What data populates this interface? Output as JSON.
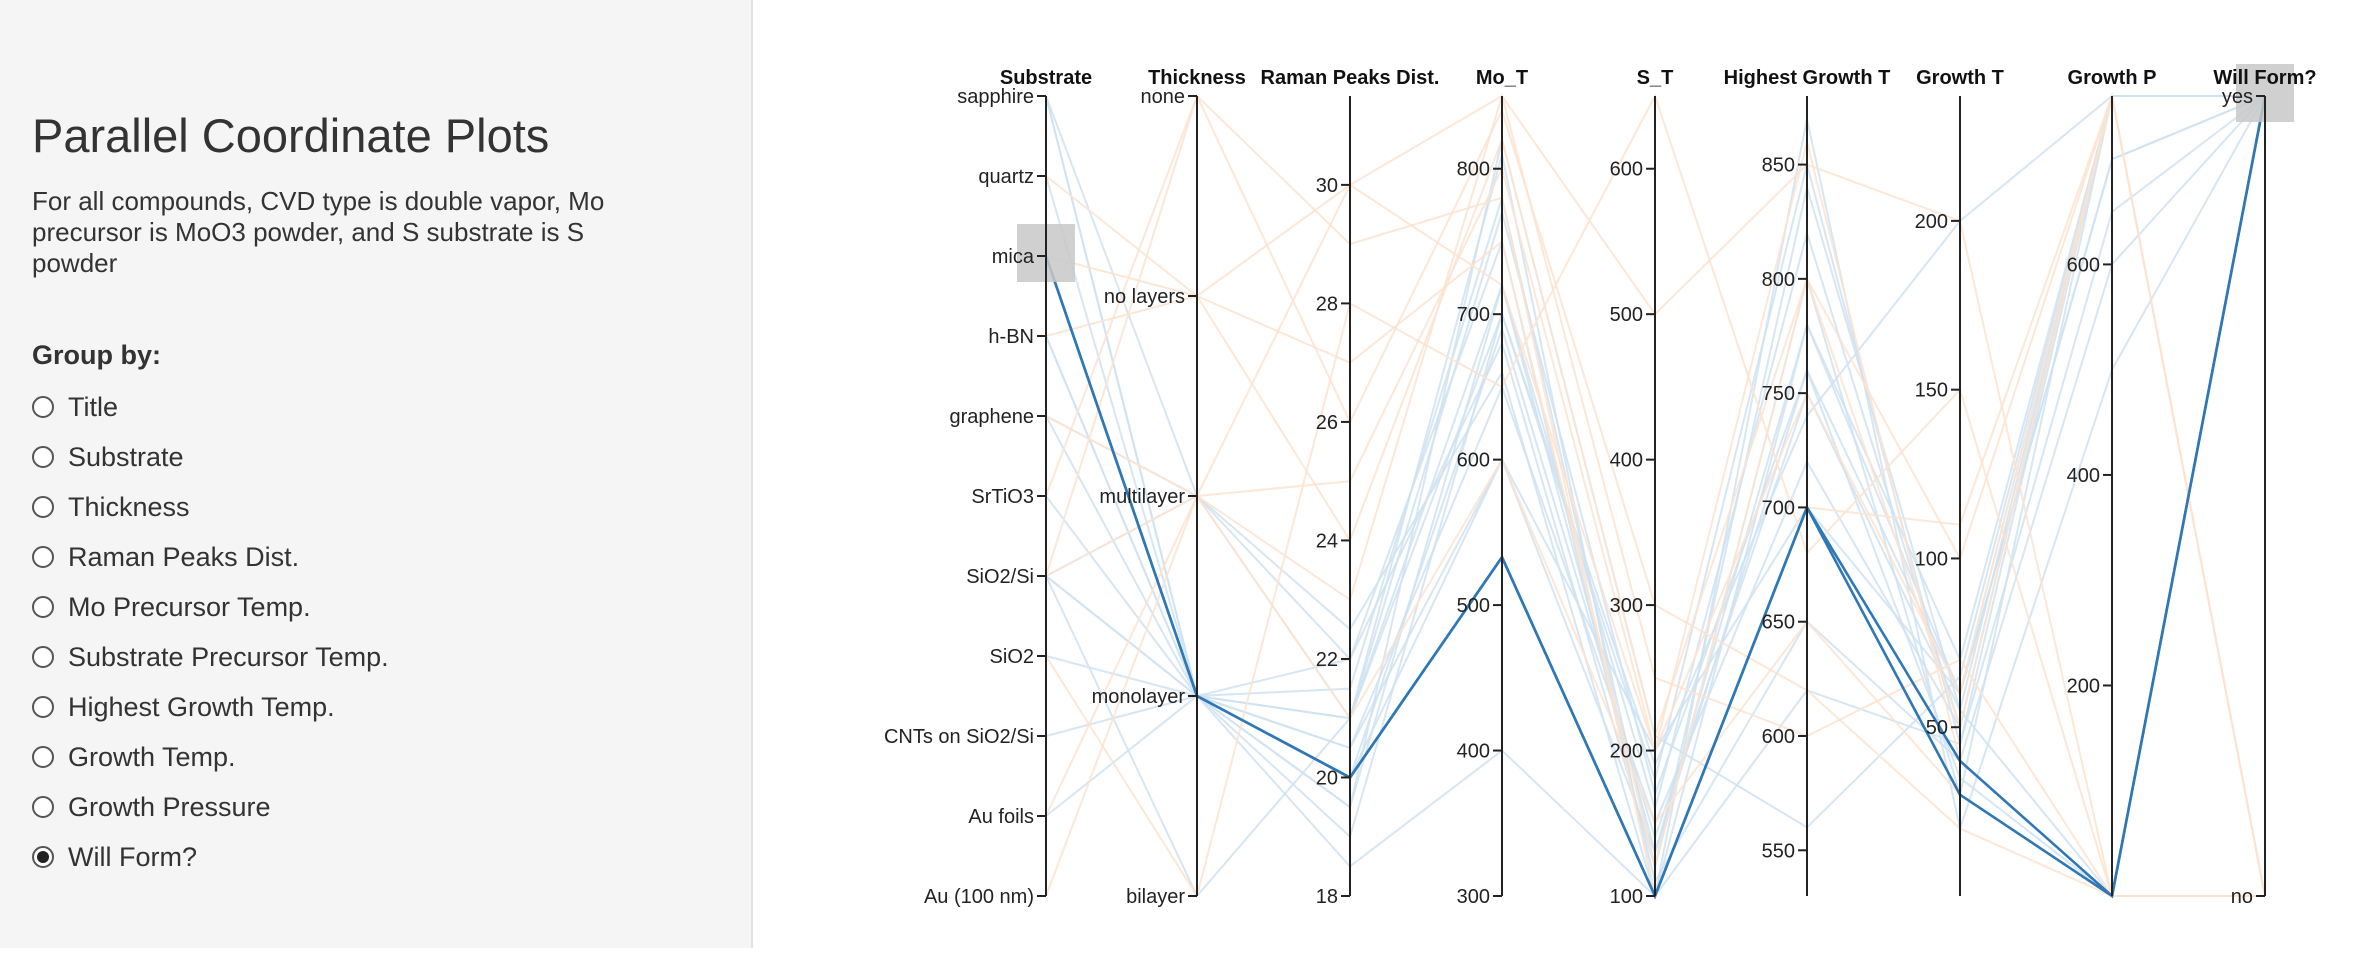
{
  "sidebar": {
    "title": "Parallel Coordinate Plots",
    "description": "For all compounds, CVD type is double vapor, Mo precursor is MoO3 powder, and S substrate is S powder",
    "group_by_label": "Group by:",
    "options": [
      {
        "label": "Title",
        "selected": false
      },
      {
        "label": "Substrate",
        "selected": false
      },
      {
        "label": "Thickness",
        "selected": false
      },
      {
        "label": "Raman Peaks Dist.",
        "selected": false
      },
      {
        "label": "Mo Precursor Temp.",
        "selected": false
      },
      {
        "label": "Substrate Precursor Temp.",
        "selected": false
      },
      {
        "label": "Highest Growth Temp.",
        "selected": false
      },
      {
        "label": "Growth Temp.",
        "selected": false
      },
      {
        "label": "Growth Pressure",
        "selected": false
      },
      {
        "label": "Will Form?",
        "selected": true
      }
    ]
  },
  "chart_data": {
    "type": "parallel-coordinates",
    "color_by": "Will Form?",
    "colors": {
      "yes": "#cfe2f1",
      "no": "#fde3cf",
      "highlight": "#2f78b5",
      "brush": "#c8c8c8",
      "axis": "#222222"
    },
    "axes": [
      {
        "name": "Substrate",
        "type": "categorical",
        "categories": [
          "sapphire",
          "quartz",
          "mica",
          "h-BN",
          "graphene",
          "SrTiO3",
          "SiO2/Si",
          "SiO2",
          "CNTs on SiO2/Si",
          "Au foils",
          "Au (100 nm)"
        ],
        "brush": [
          "mica"
        ]
      },
      {
        "name": "Thickness",
        "type": "categorical",
        "categories": [
          "none",
          "no layers",
          "multilayer",
          "monolayer",
          "bilayer"
        ]
      },
      {
        "name": "Raman Peaks Dist.",
        "type": "numeric",
        "domain": [
          18,
          31.5
        ],
        "ticks": [
          18,
          20,
          22,
          24,
          26,
          28,
          30
        ]
      },
      {
        "name": "Mo_T",
        "type": "numeric",
        "domain": [
          300,
          850
        ],
        "ticks": [
          300,
          400,
          500,
          600,
          700,
          800
        ]
      },
      {
        "name": "S_T",
        "type": "numeric",
        "domain": [
          100,
          650
        ],
        "ticks": [
          100,
          200,
          300,
          400,
          500,
          600
        ]
      },
      {
        "name": "Highest Growth T",
        "type": "numeric",
        "domain": [
          530,
          880
        ],
        "ticks": [
          550,
          600,
          650,
          700,
          750,
          800,
          850
        ]
      },
      {
        "name": "Growth T",
        "type": "numeric",
        "domain": [
          0,
          237
        ],
        "ticks": [
          50,
          100,
          150,
          200
        ]
      },
      {
        "name": "Growth P",
        "type": "numeric",
        "domain": [
          0,
          760
        ],
        "ticks": [
          200,
          400,
          600
        ]
      },
      {
        "name": "Will Form?",
        "type": "categorical",
        "categories": [
          "yes",
          "no"
        ],
        "brush": [
          "yes"
        ]
      }
    ],
    "highlighted": [
      {
        "name": "record-1",
        "values": [
          "mica",
          "monolayer",
          20,
          533,
          100,
          700,
          30,
          0,
          "yes"
        ]
      },
      {
        "name": "record-2",
        "values": [
          "mica",
          "monolayer",
          20,
          533,
          100,
          700,
          40,
          0,
          "yes"
        ]
      }
    ],
    "background": [
      {
        "form": "yes",
        "values": [
          "sapphire",
          "monolayer",
          21,
          720,
          130,
          760,
          60,
          700,
          "yes"
        ]
      },
      {
        "form": "yes",
        "values": [
          "SiO2/Si",
          "monolayer",
          20.5,
          650,
          150,
          720,
          50,
          760,
          "yes"
        ]
      },
      {
        "form": "yes",
        "values": [
          "h-BN",
          "monolayer",
          19,
          700,
          180,
          850,
          45,
          650,
          "yes"
        ]
      },
      {
        "form": "yes",
        "values": [
          "graphene",
          "monolayer",
          21.5,
          780,
          120,
          800,
          30,
          760,
          "yes"
        ]
      },
      {
        "form": "yes",
        "values": [
          "SiO2",
          "monolayer",
          20.5,
          600,
          200,
          700,
          60,
          760,
          "yes"
        ]
      },
      {
        "form": "yes",
        "values": [
          "CNTs on SiO2/Si",
          "monolayer",
          22,
          750,
          110,
          650,
          40,
          600,
          "yes"
        ]
      },
      {
        "form": "yes",
        "values": [
          "Au foils",
          "monolayer",
          20,
          690,
          140,
          750,
          55,
          0,
          "yes"
        ]
      },
      {
        "form": "yes",
        "values": [
          "SiO2/Si",
          "multilayer",
          21,
          810,
          100,
          780,
          70,
          760,
          "yes"
        ]
      },
      {
        "form": "yes",
        "values": [
          "quartz",
          "monolayer",
          19.5,
          720,
          160,
          820,
          50,
          760,
          "yes"
        ]
      },
      {
        "form": "yes",
        "values": [
          "sapphire",
          "multilayer",
          22.5,
          660,
          100,
          870,
          20,
          500,
          "yes"
        ]
      },
      {
        "form": "yes",
        "values": [
          "SrTiO3",
          "monolayer",
          18.5,
          400,
          100,
          620,
          45,
          760,
          "yes"
        ]
      },
      {
        "form": "yes",
        "values": [
          "SiO2/Si",
          "bilayer",
          21,
          700,
          190,
          740,
          200,
          760,
          "yes"
        ]
      },
      {
        "form": "yes",
        "values": [
          "h-BN",
          "monolayer",
          21,
          770,
          170,
          760,
          35,
          0,
          "yes"
        ]
      },
      {
        "form": "yes",
        "values": [
          "sapphire",
          "monolayer",
          20,
          600,
          130,
          780,
          60,
          700,
          "yes"
        ]
      },
      {
        "form": "yes",
        "values": [
          "SiO2/Si",
          "monolayer",
          19.5,
          820,
          210,
          560,
          65,
          760,
          "yes"
        ]
      },
      {
        "form": "yes",
        "values": [
          "graphene",
          "multilayer",
          22,
          680,
          120,
          840,
          55,
          760,
          "yes"
        ]
      },
      {
        "form": "no",
        "values": [
          "SiO2/Si",
          "multilayer",
          30,
          850,
          500,
          850,
          200,
          0,
          "no"
        ]
      },
      {
        "form": "no",
        "values": [
          "quartz",
          "no layers",
          24,
          820,
          210,
          800,
          100,
          760,
          "no"
        ]
      },
      {
        "form": "no",
        "values": [
          "SrTiO3",
          "none",
          26,
          840,
          300,
          620,
          20,
          0,
          "no"
        ]
      },
      {
        "form": "no",
        "values": [
          "SiO2",
          "bilayer",
          28,
          650,
          650,
          680,
          150,
          0,
          "no"
        ]
      },
      {
        "form": "no",
        "values": [
          "Au (100 nm)",
          "multilayer",
          25,
          800,
          200,
          860,
          40,
          0,
          "no"
        ]
      },
      {
        "form": "no",
        "values": [
          "mica",
          "no layers",
          30,
          720,
          200,
          750,
          60,
          760,
          "no"
        ]
      },
      {
        "form": "no",
        "values": [
          "graphene",
          "multilayer",
          23,
          850,
          250,
          600,
          70,
          0,
          "no"
        ]
      },
      {
        "form": "no",
        "values": [
          "SiO2/Si",
          "none",
          29,
          780,
          100,
          700,
          110,
          760,
          "no"
        ]
      },
      {
        "form": "no",
        "values": [
          "Au foils",
          "multilayer",
          21,
          600,
          150,
          650,
          30,
          0,
          "no"
        ]
      },
      {
        "form": "no",
        "values": [
          "h-BN",
          "no layers",
          27,
          750,
          120,
          800,
          50,
          760,
          "no"
        ]
      }
    ]
  }
}
